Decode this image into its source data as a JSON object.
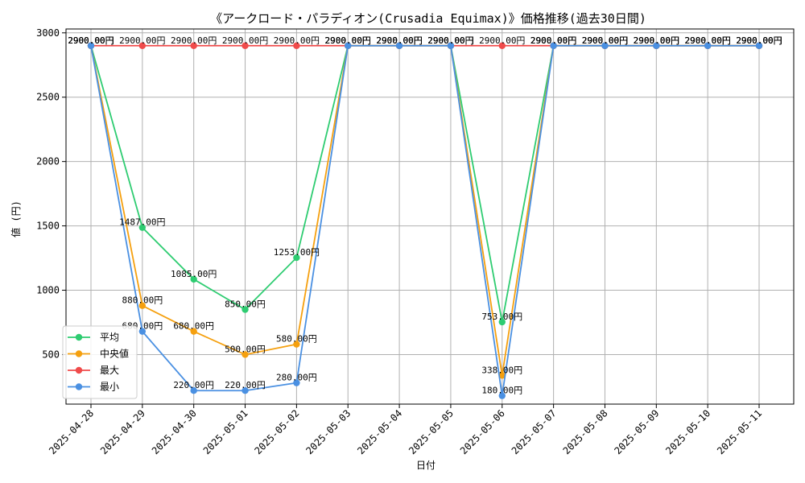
{
  "chart_data": {
    "type": "line",
    "title": "《アークロード・パラディオン(Crusadia Equimax)》価格推移(過去30日間)",
    "xlabel": "日付",
    "ylabel": "値 (円)",
    "ylim": [
      115,
      3030
    ],
    "yticks": [
      500,
      1000,
      1500,
      2000,
      2500,
      3000
    ],
    "grid": true,
    "legend_position": "lower-left",
    "categories": [
      "2025-04-28",
      "2025-04-29",
      "2025-04-30",
      "2025-05-01",
      "2025-05-02",
      "2025-05-03",
      "2025-05-04",
      "2025-05-05",
      "2025-05-06",
      "2025-05-07",
      "2025-05-08",
      "2025-05-09",
      "2025-05-10",
      "2025-05-11"
    ],
    "series": [
      {
        "name": "平均",
        "color": "#2ecc71",
        "values": [
          2900,
          1487,
          1085,
          850,
          1253,
          2900,
          2900,
          2900,
          753,
          2900,
          2900,
          2900,
          2900,
          2900
        ],
        "labels": [
          "2900.00円",
          "1487.00円",
          "1085.00円",
          "850.00円",
          "1253.00円",
          "2900.00円",
          "2900.00円",
          "2900.00円",
          "753.00円",
          "2900.00円",
          "2900.00円",
          "2900.00円",
          "2900.00円",
          "2900.00円"
        ]
      },
      {
        "name": "中央値",
        "color": "#f5a00f",
        "values": [
          2900,
          880,
          680,
          500,
          580,
          2900,
          2900,
          2900,
          338,
          2900,
          2900,
          2900,
          2900,
          2900
        ],
        "labels": [
          "2900.00円",
          "880.00円",
          "680.00円",
          "500.00円",
          "580.00円",
          "2900.00円",
          "2900.00円",
          "2900.00円",
          "338.00円",
          "2900.00円",
          "2900.00円",
          "2900.00円",
          "2900.00円",
          "2900.00円"
        ]
      },
      {
        "name": "最大",
        "color": "#f04b4b",
        "values": [
          2900,
          2900,
          2900,
          2900,
          2900,
          2900,
          2900,
          2900,
          2900,
          2900,
          2900,
          2900,
          2900,
          2900
        ],
        "labels": [
          "2900.00円",
          "2900.00円",
          "2900.00円",
          "2900.00円",
          "2900.00円",
          "2900.00円",
          "2900.00円",
          "2900.00円",
          "2900.00円",
          "2900.00円",
          "2900.00円",
          "2900.00円",
          "2900.00円",
          "2900.00円"
        ]
      },
      {
        "name": "最小",
        "color": "#4a90e2",
        "values": [
          2900,
          680,
          220,
          220,
          280,
          2900,
          2900,
          2900,
          180,
          2900,
          2900,
          2900,
          2900,
          2900
        ],
        "labels": [
          "2900.00円",
          "680.00円",
          "220.00円",
          "220.00円",
          "280.00円",
          "2900.00円",
          "2900.00円",
          "2900.00円",
          "180.00円",
          "2900.00円",
          "2900.00円",
          "2900.00円",
          "2900.00円",
          "2900.00円"
        ]
      }
    ]
  }
}
